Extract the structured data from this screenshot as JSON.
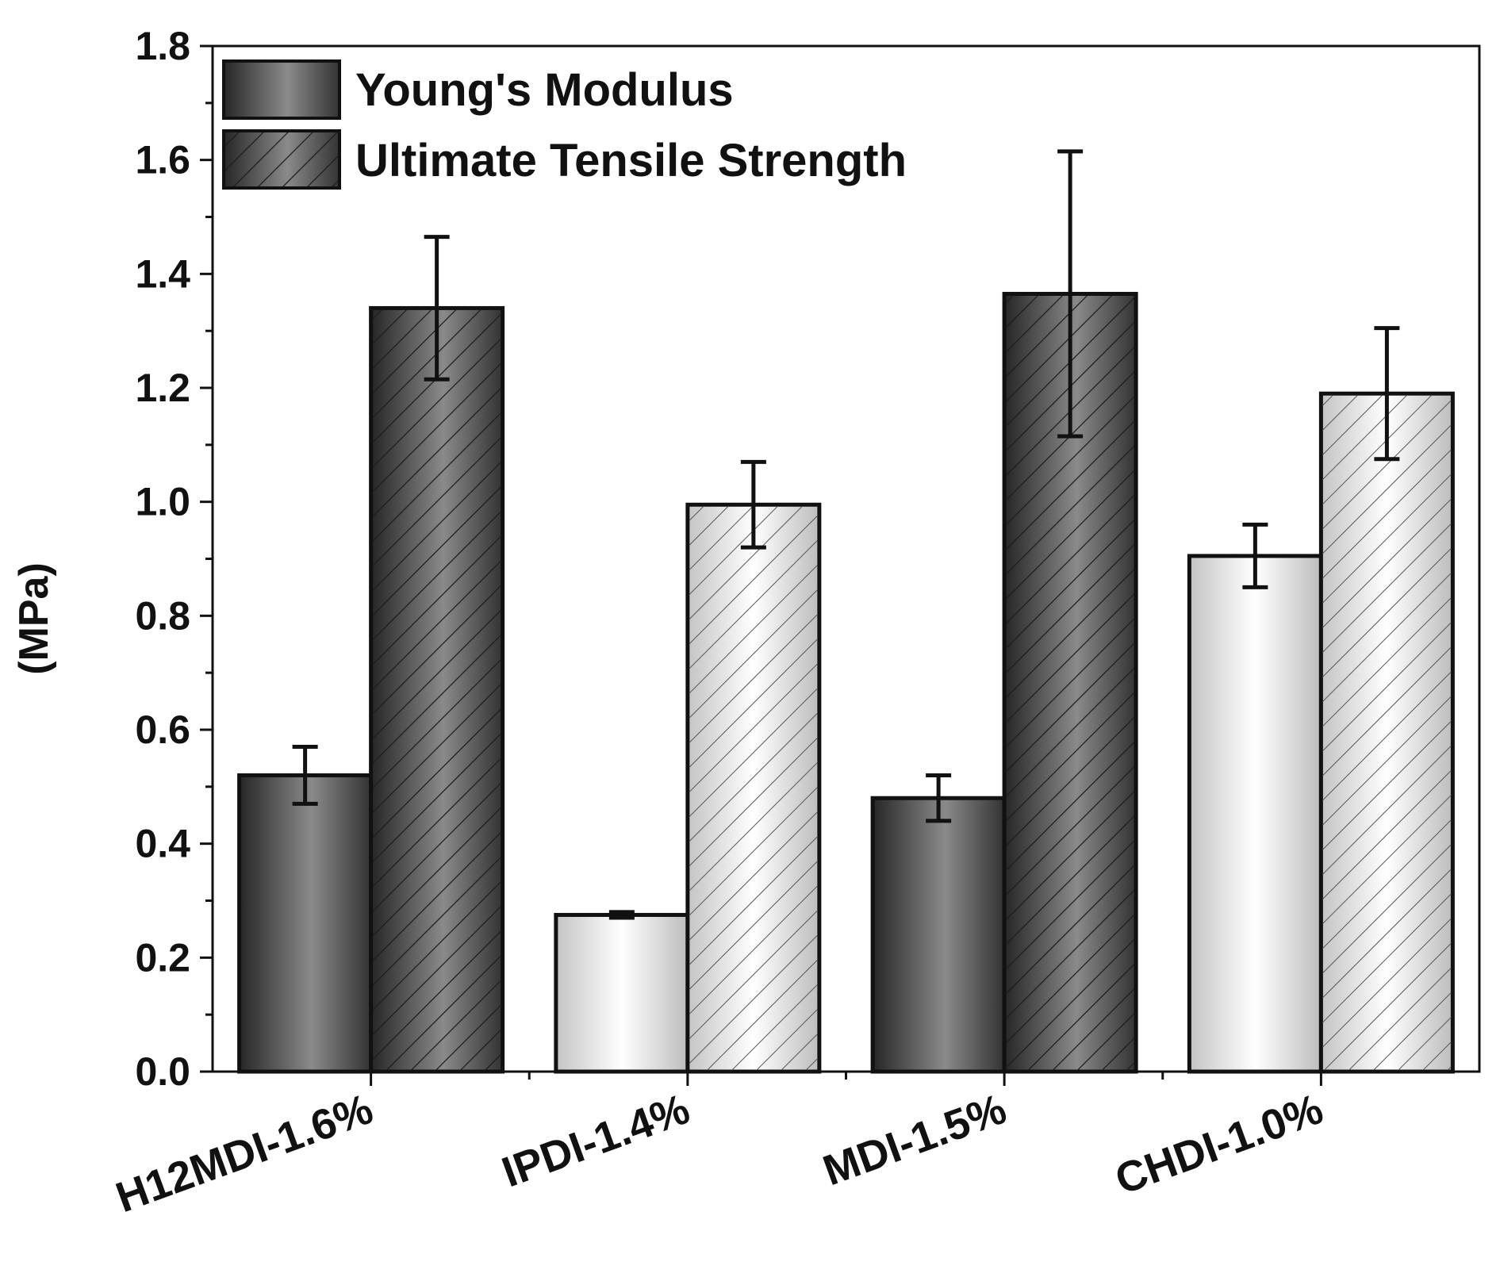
{
  "chart_data": {
    "type": "bar",
    "title": "",
    "xlabel": "",
    "ylabel": "(MPa)",
    "ylim": [
      0.0,
      1.8
    ],
    "yticks": [
      "0.0",
      "0.2",
      "0.4",
      "0.6",
      "0.8",
      "1.0",
      "1.2",
      "1.4",
      "1.6",
      "1.8"
    ],
    "categories": [
      "H12MDI-1.6%",
      "IPDI-1.4%",
      "MDI-1.5%",
      "CHDI-1.0%"
    ],
    "category_shading": [
      "dark",
      "light",
      "dark",
      "light"
    ],
    "series": [
      {
        "name": "Young's Modulus",
        "pattern": "solid",
        "values": [
          0.52,
          0.275,
          0.48,
          0.905
        ],
        "errors": [
          0.05,
          0.005,
          0.04,
          0.055
        ]
      },
      {
        "name": "Ultimate Tensile Strength",
        "pattern": "hatched",
        "values": [
          1.34,
          0.995,
          1.365,
          1.19
        ],
        "errors": [
          0.125,
          0.075,
          0.25,
          0.115
        ]
      }
    ],
    "legend_position": "top-left",
    "grid": false,
    "colors": {
      "dark": "#555555",
      "light": "#e6e6e6",
      "outline": "#111111",
      "errorbar": "#111111"
    }
  }
}
